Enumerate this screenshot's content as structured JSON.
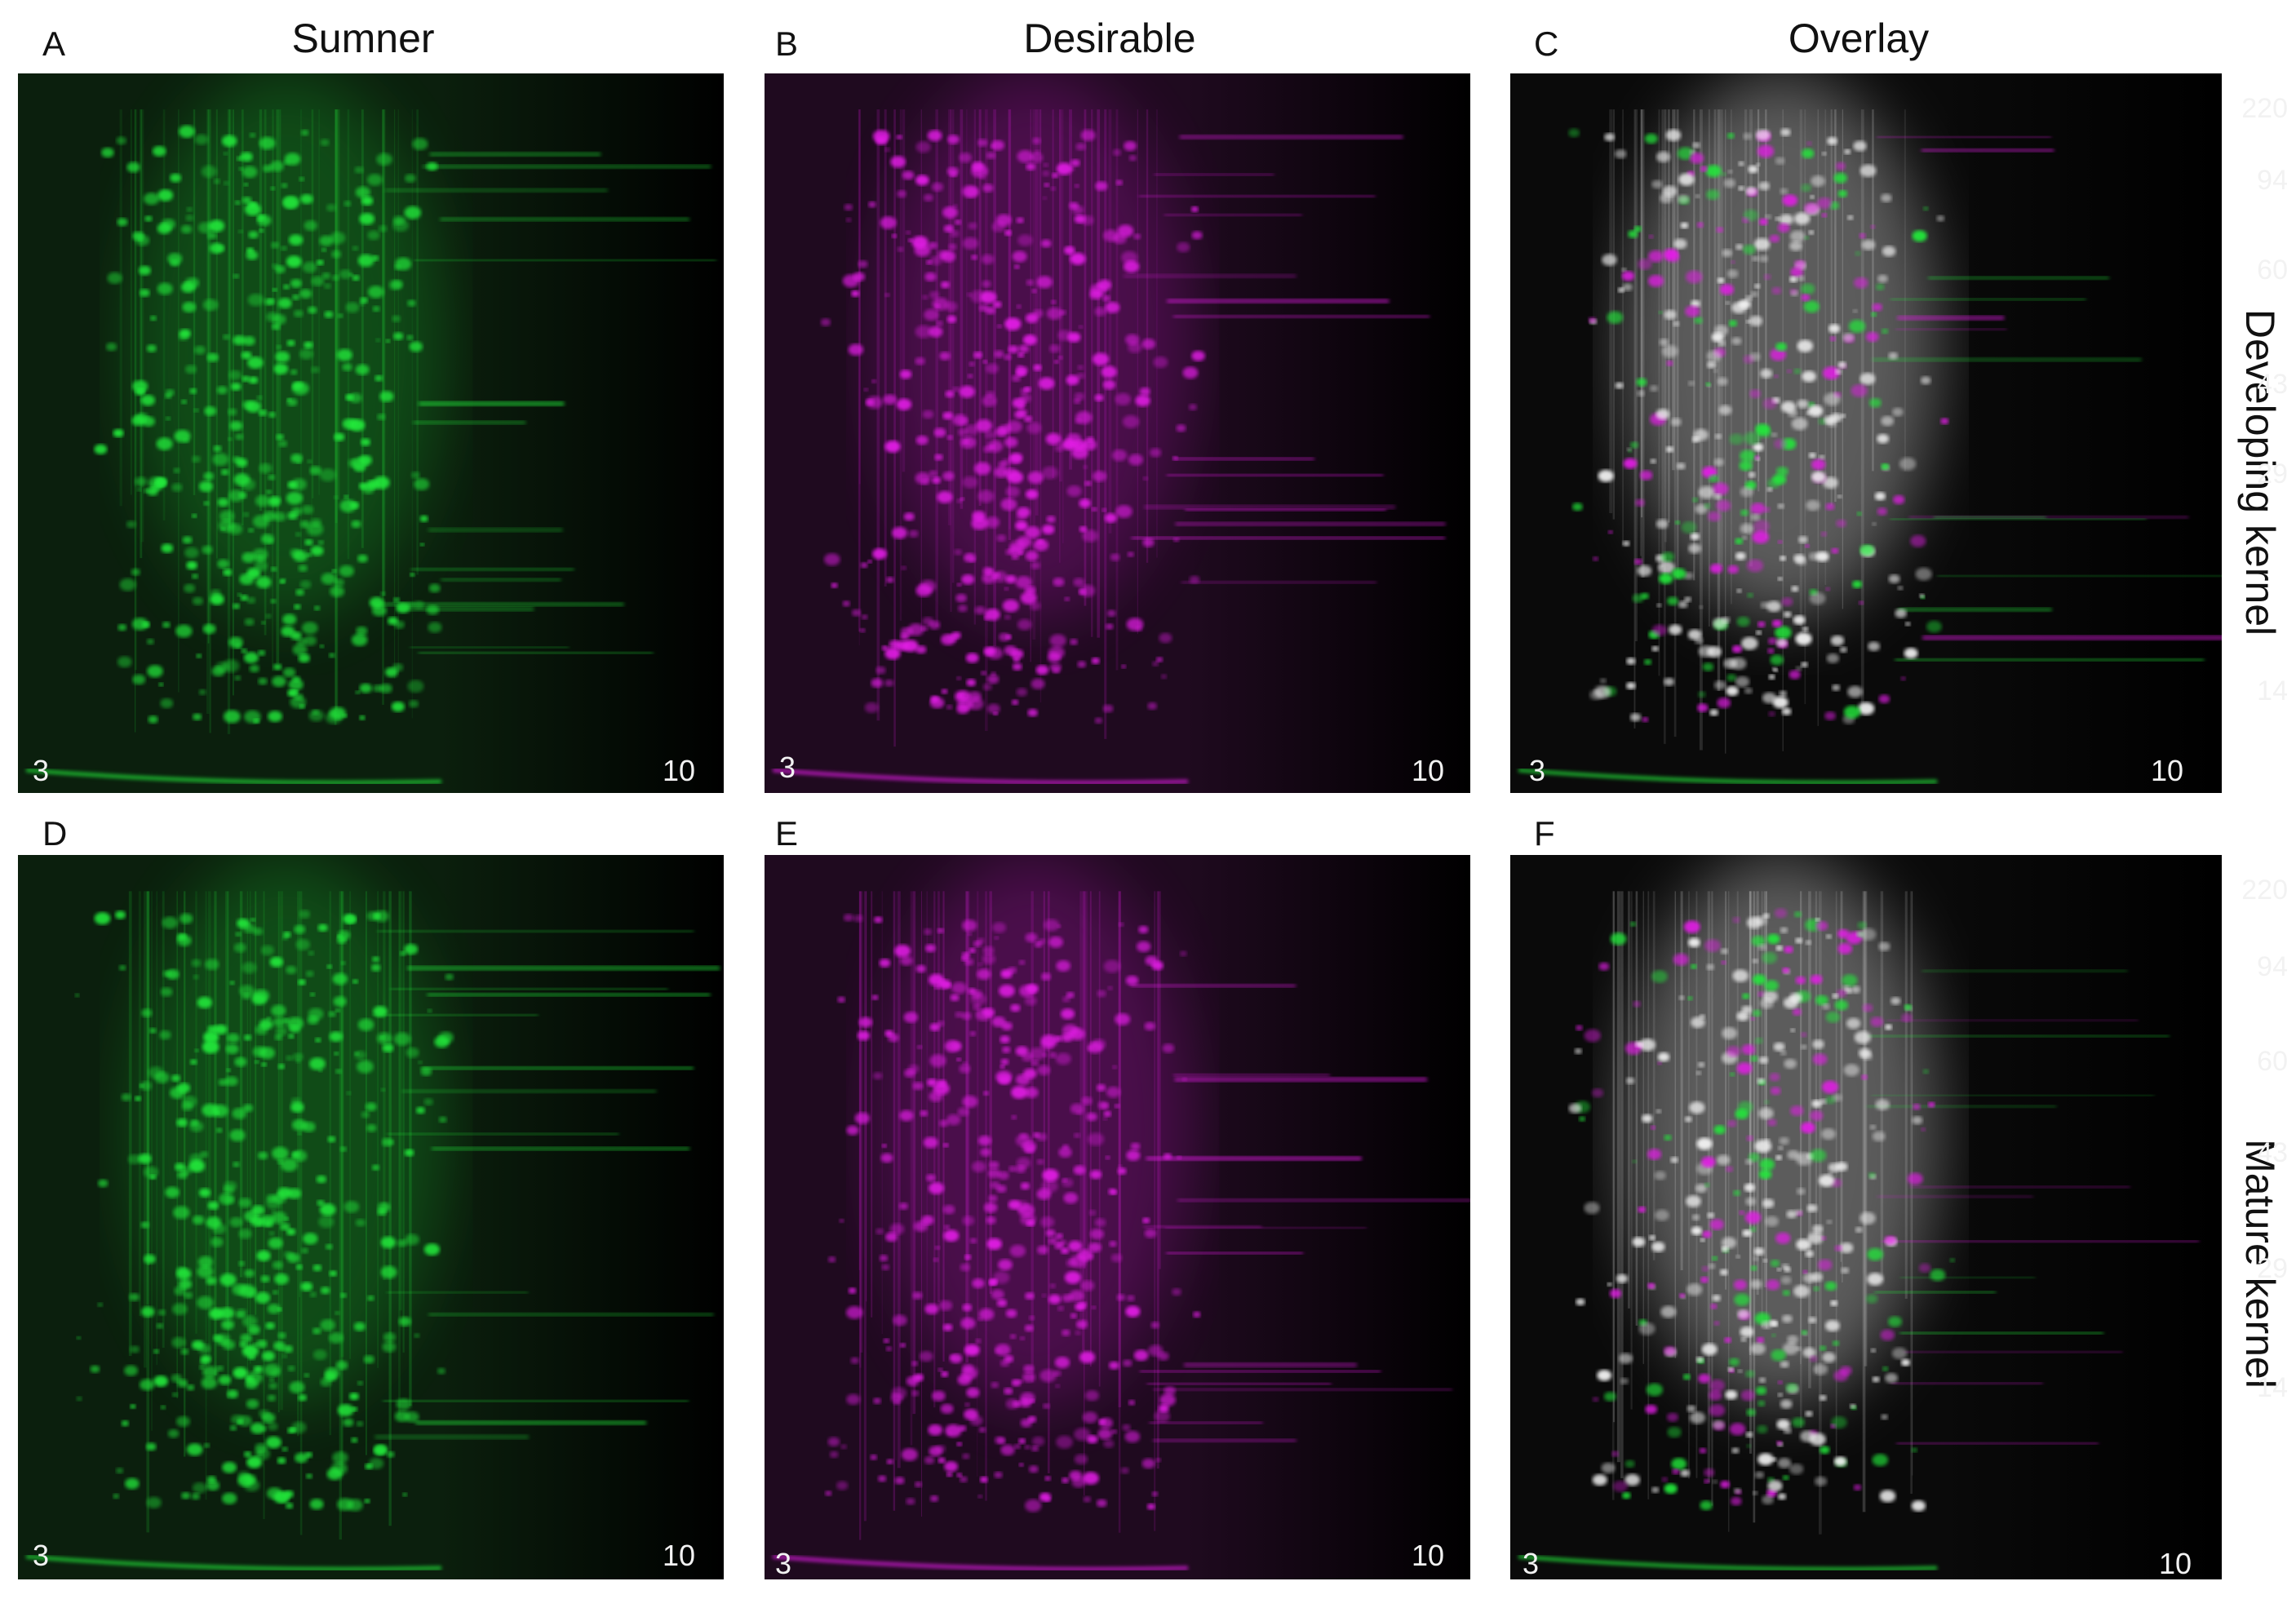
{
  "columns": [
    "Sumner",
    "Desirable",
    "Overlay"
  ],
  "rows": [
    "Developing kernel",
    "Mature kernel"
  ],
  "panels": [
    {
      "letter": "A",
      "ph_left": "3",
      "ph_right": "10",
      "color": "green"
    },
    {
      "letter": "B",
      "ph_left": "3",
      "ph_right": "10",
      "color": "magenta"
    },
    {
      "letter": "C",
      "ph_left": "3",
      "ph_right": "10",
      "color": "overlay",
      "mw_markers": [
        "220",
        "94",
        "60",
        "43",
        "29",
        "14"
      ]
    },
    {
      "letter": "D",
      "ph_left": "3",
      "ph_right": "10",
      "color": "green"
    },
    {
      "letter": "E",
      "ph_left": "3",
      "ph_right": "10",
      "color": "magenta"
    },
    {
      "letter": "F",
      "ph_left": "3",
      "ph_right": "10",
      "color": "overlay",
      "mw_markers": [
        "220",
        "94",
        "60",
        "43",
        "29",
        "14"
      ]
    }
  ],
  "colors": {
    "green": "#22e83a",
    "magenta": "#e31de6",
    "overlay_white": "#f4f4f4"
  }
}
